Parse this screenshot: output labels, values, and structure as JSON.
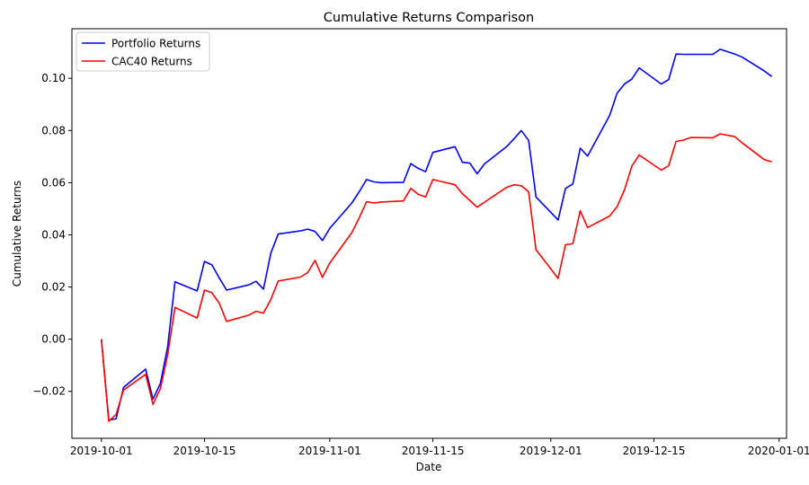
{
  "chart_data": {
    "type": "line",
    "title": "Cumulative Returns Comparison",
    "xlabel": "Date",
    "ylabel": "Cumulative Returns",
    "xlim": [
      "2019-09-27",
      "2020-01-02"
    ],
    "ylim": [
      -0.038,
      0.119
    ],
    "grid": false,
    "legend_position": "top-left",
    "x_ticks": [
      "2019-10-01",
      "2019-10-15",
      "2019-11-01",
      "2019-11-15",
      "2019-12-01",
      "2019-12-15",
      "2020-01-01"
    ],
    "y_ticks": [
      -0.02,
      0.0,
      0.02,
      0.04,
      0.06,
      0.08,
      0.1
    ],
    "y_tick_labels": [
      "−0.02",
      "0.00",
      "0.02",
      "0.04",
      "0.06",
      "0.08",
      "0.10"
    ],
    "x": [
      "2019-10-01",
      "2019-10-02",
      "2019-10-03",
      "2019-10-04",
      "2019-10-07",
      "2019-10-08",
      "2019-10-09",
      "2019-10-10",
      "2019-10-11",
      "2019-10-14",
      "2019-10-15",
      "2019-10-16",
      "2019-10-17",
      "2019-10-18",
      "2019-10-21",
      "2019-10-22",
      "2019-10-23",
      "2019-10-24",
      "2019-10-25",
      "2019-10-28",
      "2019-10-29",
      "2019-10-30",
      "2019-10-31",
      "2019-11-01",
      "2019-11-04",
      "2019-11-05",
      "2019-11-06",
      "2019-11-07",
      "2019-11-08",
      "2019-11-11",
      "2019-11-12",
      "2019-11-13",
      "2019-11-14",
      "2019-11-15",
      "2019-11-18",
      "2019-11-19",
      "2019-11-20",
      "2019-11-21",
      "2019-11-22",
      "2019-11-25",
      "2019-11-26",
      "2019-11-27",
      "2019-11-28",
      "2019-11-29",
      "2019-12-02",
      "2019-12-03",
      "2019-12-04",
      "2019-12-05",
      "2019-12-06",
      "2019-12-09",
      "2019-12-10",
      "2019-12-11",
      "2019-12-12",
      "2019-12-13",
      "2019-12-16",
      "2019-12-17",
      "2019-12-18",
      "2019-12-19",
      "2019-12-20",
      "2019-12-23",
      "2019-12-24",
      "2019-12-26",
      "2019-12-27",
      "2019-12-30",
      "2019-12-31"
    ],
    "series": [
      {
        "name": "Portfolio Returns",
        "color": "#0000ff",
        "values": [
          0.0,
          -0.031,
          -0.0305,
          -0.0185,
          -0.0115,
          -0.023,
          -0.017,
          -0.003,
          0.022,
          0.0185,
          0.0298,
          0.0285,
          0.0235,
          0.0188,
          0.0208,
          0.0222,
          0.0192,
          0.033,
          0.0403,
          0.0415,
          0.0422,
          0.0413,
          0.0378,
          0.0425,
          0.0522,
          0.0565,
          0.0612,
          0.0603,
          0.06,
          0.0601,
          0.0673,
          0.0655,
          0.0642,
          0.0716,
          0.0738,
          0.0678,
          0.0675,
          0.0634,
          0.0672,
          0.0738,
          0.0768,
          0.08,
          0.0762,
          0.0545,
          0.0457,
          0.0578,
          0.0595,
          0.0732,
          0.0702,
          0.0858,
          0.0943,
          0.0978,
          0.0997,
          0.104,
          0.0978,
          0.0995,
          0.1093,
          0.1092,
          0.1092,
          0.1092,
          0.1111,
          0.1093,
          0.1081,
          0.1028,
          0.1007
        ]
      },
      {
        "name": "CAC40 Returns",
        "color": "#ff0000",
        "values": [
          0.0,
          -0.0315,
          -0.0288,
          -0.0195,
          -0.0135,
          -0.025,
          -0.019,
          -0.006,
          0.0122,
          0.0081,
          0.0188,
          0.0178,
          0.0138,
          0.0068,
          0.0092,
          0.0107,
          0.01,
          0.0152,
          0.0223,
          0.0238,
          0.0255,
          0.0302,
          0.0237,
          0.0292,
          0.0408,
          0.0465,
          0.0527,
          0.0522,
          0.0526,
          0.053,
          0.0578,
          0.0555,
          0.0545,
          0.0612,
          0.0592,
          0.0558,
          0.0532,
          0.0506,
          0.0525,
          0.0582,
          0.0592,
          0.0588,
          0.0565,
          0.0343,
          0.0233,
          0.0362,
          0.0366,
          0.0492,
          0.0428,
          0.0472,
          0.0508,
          0.0572,
          0.0663,
          0.0706,
          0.0648,
          0.0665,
          0.0758,
          0.0763,
          0.0773,
          0.0772,
          0.0787,
          0.0776,
          0.0752,
          0.0688,
          0.068
        ]
      }
    ]
  }
}
